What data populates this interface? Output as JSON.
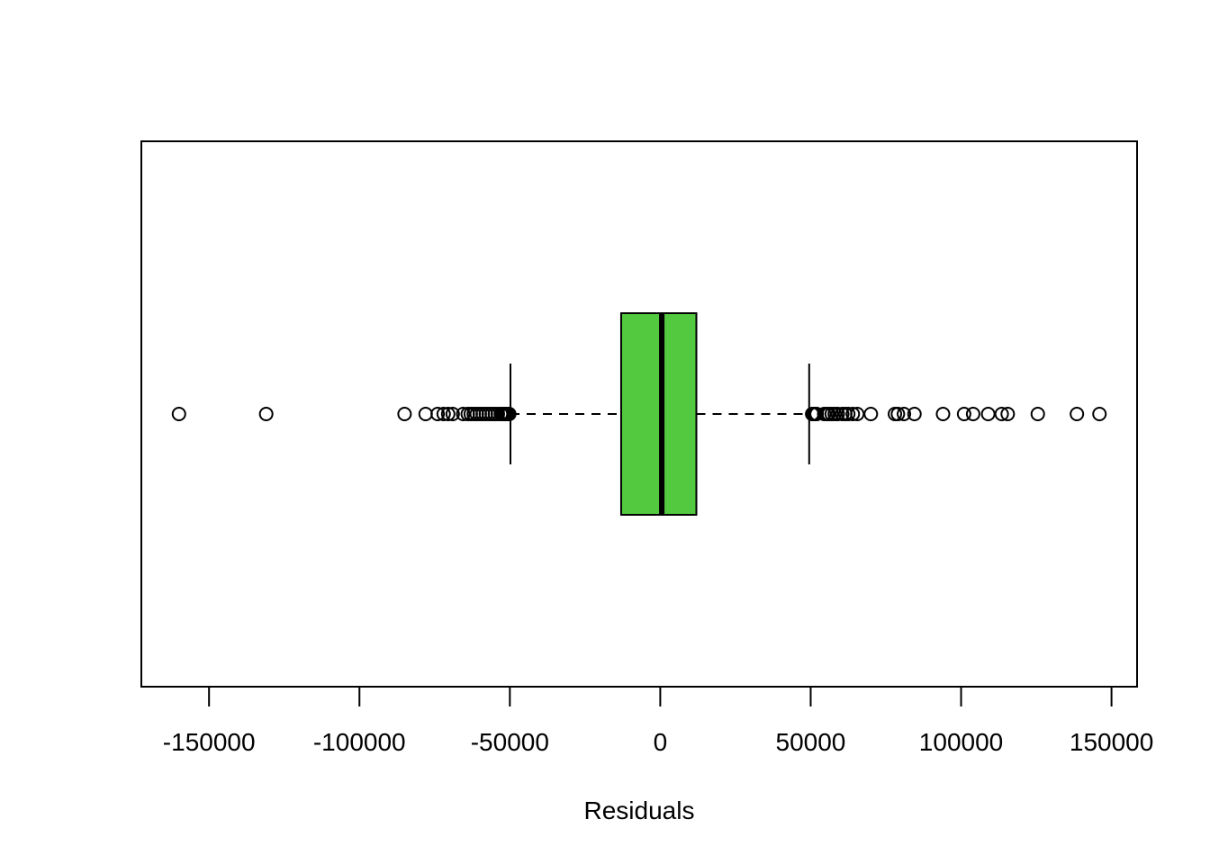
{
  "chart_data": {
    "type": "boxplot",
    "orientation": "horizontal",
    "title": "",
    "xlabel": "Residuals",
    "ylabel": "",
    "xlim": [
      -172500,
      158500
    ],
    "xticks": [
      -150000,
      -100000,
      -50000,
      0,
      50000,
      100000,
      150000
    ],
    "xtick_labels": [
      "-150000",
      "-100000",
      "-50000",
      "0",
      "50000",
      "100000",
      "150000"
    ],
    "grid": false,
    "box_fill_color": "#53c940",
    "box": {
      "lower_whisker": -49800,
      "q1": -13000,
      "median": 500,
      "q3": 12000,
      "upper_whisker": 49500
    },
    "outliers": [
      -160000,
      -131000,
      -85000,
      -78000,
      -74000,
      -72000,
      -70500,
      -69000,
      -65500,
      -64000,
      -63000,
      -62000,
      -61000,
      -60000,
      -59000,
      -58000,
      -57000,
      -56000,
      -55000,
      -54000,
      -53000,
      -52500,
      -52000,
      -51500,
      -51000,
      -50500,
      -50200,
      50500,
      51000,
      51500,
      52000,
      54500,
      55500,
      56000,
      57000,
      58000,
      59000,
      60500,
      61500,
      62500,
      64000,
      65500,
      70000,
      78000,
      79000,
      81000,
      84500,
      94000,
      101000,
      104000,
      109000,
      113500,
      115500,
      125500,
      138500,
      146000
    ]
  }
}
